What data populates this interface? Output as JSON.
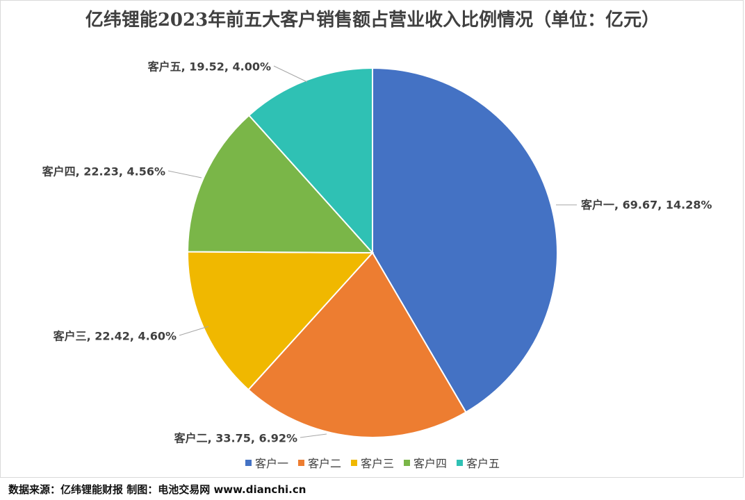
{
  "chart_data": {
    "type": "pie",
    "title": "亿纬锂能2023年前五大客户销售额占营业收入比例情况（单位：亿元）",
    "slices": [
      {
        "name": "客户一",
        "value": 69.67,
        "percent_label": "14.28%",
        "color": "#4472c4"
      },
      {
        "name": "客户二",
        "value": 33.75,
        "percent_label": "6.92%",
        "color": "#ed7d31"
      },
      {
        "name": "客户三",
        "value": 22.42,
        "percent_label": "4.60%",
        "color": "#f0b800"
      },
      {
        "name": "客户四",
        "value": 22.23,
        "percent_label": "4.56%",
        "color": "#7ab648"
      },
      {
        "name": "客户五",
        "value": 19.52,
        "percent_label": "4.00%",
        "color": "#2fc1b4"
      }
    ],
    "legend_position": "bottom"
  },
  "footer": "数据来源：亿纬锂能财报  制图：电池交易网 www.dianchi.cn"
}
